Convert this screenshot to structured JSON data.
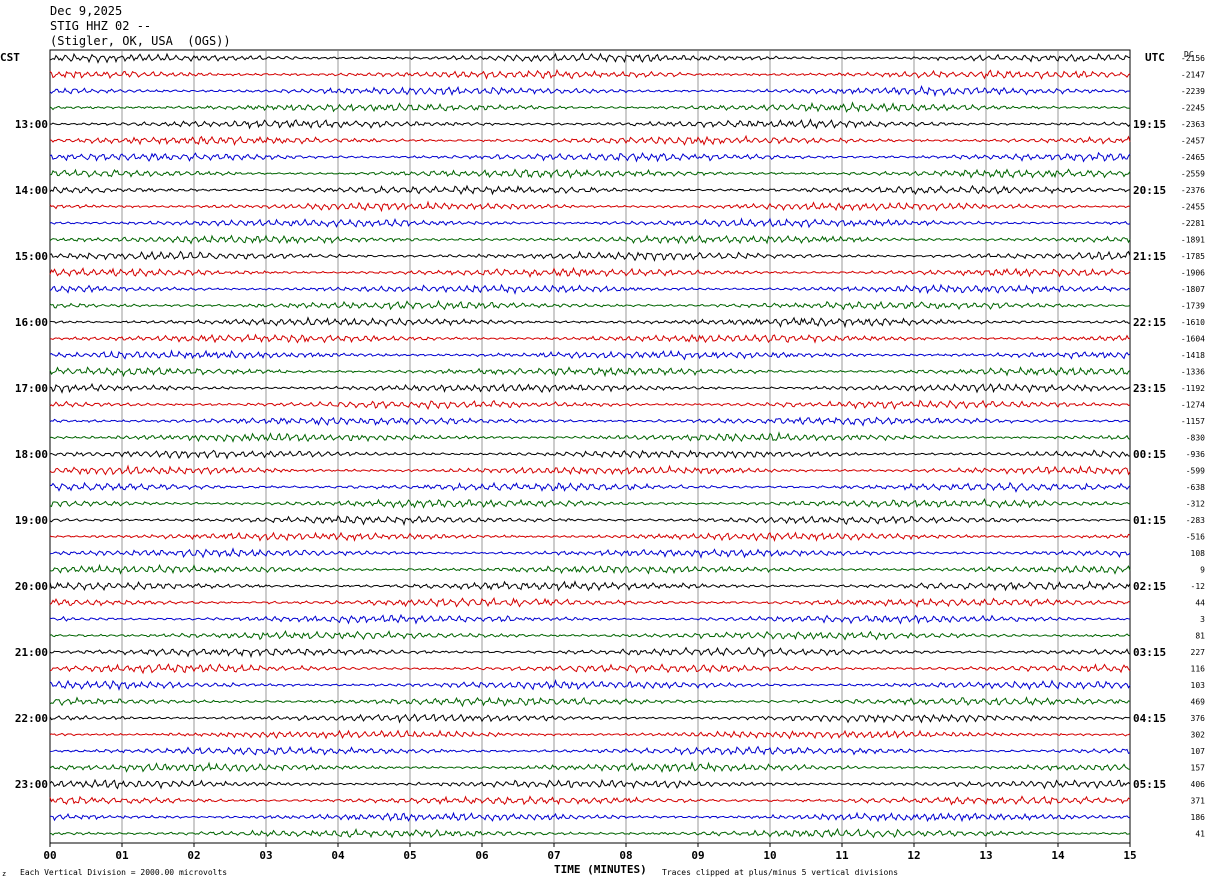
{
  "header": {
    "date": "Dec 9,2025",
    "station": "STIG HHZ 02 --",
    "location": "(Stigler, OK, USA  (OGS))"
  },
  "timezones": {
    "left": "CST",
    "right": "UTC",
    "right_column_header": "DC"
  },
  "colors": {
    "trace_cycle": [
      "#000000",
      "#d40000",
      "#0000d0",
      "#006400"
    ],
    "grid": "#808080"
  },
  "chart_data": {
    "type": "line",
    "title": "STIG HHZ 02 --",
    "xlabel": "TIME (MINUTES)",
    "xlim": [
      0,
      15
    ],
    "x_ticks": [
      "00",
      "01",
      "02",
      "03",
      "04",
      "05",
      "06",
      "07",
      "08",
      "09",
      "10",
      "11",
      "12",
      "13",
      "14",
      "15"
    ],
    "row_minutes": 15,
    "rows": 48,
    "left_time_labels": [
      {
        "row": 4,
        "label": "13:00"
      },
      {
        "row": 8,
        "label": "14:00"
      },
      {
        "row": 12,
        "label": "15:00"
      },
      {
        "row": 16,
        "label": "16:00"
      },
      {
        "row": 20,
        "label": "17:00"
      },
      {
        "row": 24,
        "label": "18:00"
      },
      {
        "row": 28,
        "label": "19:00"
      },
      {
        "row": 32,
        "label": "20:00"
      },
      {
        "row": 36,
        "label": "21:00"
      },
      {
        "row": 40,
        "label": "22:00"
      },
      {
        "row": 44,
        "label": "23:00"
      }
    ],
    "right_time_labels": [
      {
        "row": 4,
        "label": "19:15"
      },
      {
        "row": 8,
        "label": "20:15"
      },
      {
        "row": 12,
        "label": "21:15"
      },
      {
        "row": 16,
        "label": "22:15"
      },
      {
        "row": 20,
        "label": "23:15"
      },
      {
        "row": 24,
        "label": "00:15"
      },
      {
        "row": 28,
        "label": "01:15"
      },
      {
        "row": 32,
        "label": "02:15"
      },
      {
        "row": 36,
        "label": "03:15"
      },
      {
        "row": 40,
        "label": "04:15"
      },
      {
        "row": 44,
        "label": "05:15"
      }
    ],
    "dc_offsets": [
      "-2156",
      "-2147",
      "-2239",
      "-2245",
      "-2363",
      "-2457",
      "-2465",
      "-2559",
      "-2376",
      "-2455",
      "-2281",
      "-1891",
      "-1785",
      "-1906",
      "-1807",
      "-1739",
      "-1610",
      "-1604",
      "-1418",
      "-1336",
      "-1192",
      "-1274",
      "-1157",
      "-830",
      "-936",
      "-599",
      "-638",
      "-312",
      "-283",
      "-516",
      "108",
      "9",
      "-12",
      "44",
      "3",
      "81",
      "227",
      "116",
      "103",
      "469",
      "376",
      "302",
      "107",
      "157",
      "406",
      "371",
      "186",
      "41"
    ],
    "grid": true
  },
  "footer": {
    "mark": "z",
    "scale_note": "Each Vertical Division = 2000.00 microvolts",
    "clip_note": "Traces clipped at plus/minus 5 vertical divisions"
  }
}
